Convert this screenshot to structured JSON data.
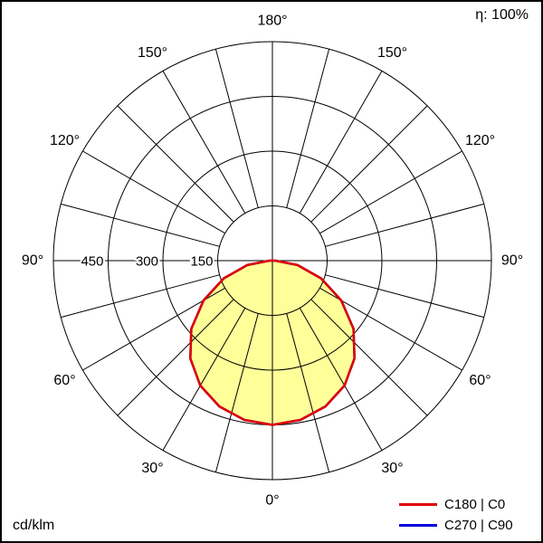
{
  "meta": {
    "efficiency_label": "η: 100%",
    "unit_label": "cd/klm"
  },
  "legend": [
    {
      "label": "C180 | C0",
      "color": "#e00000"
    },
    {
      "label": "C270 | C90",
      "color": "#0000e0"
    }
  ],
  "chart_data": {
    "type": "line",
    "subtype": "polar-photometric-distribution",
    "title": "",
    "unit": "cd/klm",
    "efficiency": "η: 100%",
    "radial_axis_max": 600,
    "radial_ticks": [
      150,
      300,
      450,
      600
    ],
    "radial_tick_labels": [
      {
        "value": 150,
        "label": "150"
      },
      {
        "value": 300,
        "label": "300"
      },
      {
        "value": 450,
        "label": "450"
      }
    ],
    "spoke_step_deg": 15,
    "angle_labels": [
      {
        "deg": 0,
        "label": "0°"
      },
      {
        "deg": 30,
        "label": "30°"
      },
      {
        "deg": 60,
        "label": "60°"
      },
      {
        "deg": 90,
        "label": "90°"
      },
      {
        "deg": 120,
        "label": "120°"
      },
      {
        "deg": 150,
        "label": "150°"
      },
      {
        "deg": 180,
        "label": "180°"
      }
    ],
    "fill_color": "#ffff99",
    "series": [
      {
        "name": "C180 | C0",
        "color": "#e00000",
        "gamma_deg": [
          0,
          10,
          20,
          30,
          40,
          50,
          60,
          70,
          80,
          90
        ],
        "values": [
          450,
          443,
          425,
          395,
          350,
          290,
          218,
          142,
          70,
          8
        ]
      },
      {
        "name": "C270 | C90",
        "color": "#0000e0",
        "gamma_deg": [
          0,
          10,
          20,
          30,
          40,
          50,
          60,
          70,
          80,
          90
        ],
        "values": [
          450,
          443,
          425,
          395,
          350,
          290,
          218,
          142,
          70,
          8
        ]
      }
    ],
    "legend_position": "bottom-right",
    "grid": true
  }
}
